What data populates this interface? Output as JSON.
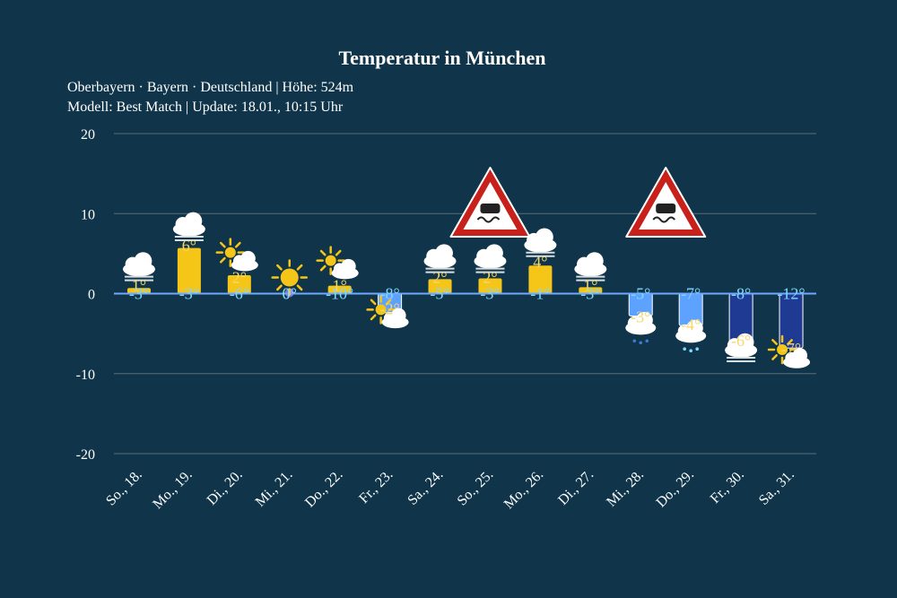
{
  "chart_data": {
    "type": "bar",
    "title": "Temperatur in München",
    "subtitle_line1": "Oberbayern · Bayern · Deutschland | Höhe: 524m",
    "subtitle_line2": "Modell: Best Match | Update: 18.01., 10:15 Uhr",
    "ylim": [
      -20,
      20
    ],
    "yticks": [
      "20",
      "10",
      "0",
      "-10",
      "-20"
    ],
    "grid": true,
    "categories": [
      "So., 18.",
      "Mo., 19.",
      "Di., 20.",
      "Mi., 21.",
      "Do., 22.",
      "Fr., 23.",
      "Sa., 24.",
      "So., 25.",
      "Mo., 26.",
      "Di., 27.",
      "Mi., 28.",
      "Do., 29.",
      "Fr., 30.",
      "Sa., 31."
    ],
    "max_values": [
      1,
      6,
      2,
      0,
      1,
      -2,
      2,
      2,
      4,
      1,
      -3,
      -4,
      -6,
      -7
    ],
    "min_values": [
      -3,
      -3,
      -6,
      0,
      -10,
      -8,
      -5,
      -3,
      -1,
      -3,
      -5,
      -7,
      -8,
      -12
    ],
    "max_labels": [
      "1°",
      "6°",
      "2°",
      "0°",
      "1°",
      "-2°",
      "2°",
      "2°",
      "4°",
      "1°",
      "-3°",
      "-4°",
      "-6°",
      "-7°"
    ],
    "min_labels": [
      "-3°",
      "-3°",
      "-6°",
      "0°",
      "-10°",
      "-8°",
      "-5°",
      "-3°",
      "-1°",
      "-3°",
      "-5°",
      "-7°",
      "-8°",
      "-12°"
    ],
    "bar_values": [
      0.7,
      5.7,
      2.3,
      0,
      1.0,
      -2.4,
      1.8,
      1.9,
      3.5,
      0.8,
      -2.8,
      -4.0,
      -6.0,
      -6.8
    ],
    "weather_icons": [
      "fog-cloud-icon",
      "fog-cloud-icon",
      "sun-cloud-icon",
      "sun-icon",
      "sun-cloud-icon",
      "sun-cloud-icon",
      "fog-cloud-icon",
      "fog-cloud-icon",
      "fog-cloud-icon",
      "fog-cloud-icon",
      "snow-cloud-icon",
      "snow-cloud-icon",
      "fog-cloud-icon",
      "sun-cloud-icon"
    ],
    "warning_days": [
      7,
      10.5
    ],
    "colors": {
      "background": "#10354a",
      "zero_line": "#6ea8ff",
      "grid": "#5b6e78",
      "warm_bar": "#f5c518",
      "cold_light": "#5ea2ff",
      "cold_dark": "#1f3a93",
      "max_label": "#f5d76e",
      "min_label": "#7fd9ff"
    }
  }
}
